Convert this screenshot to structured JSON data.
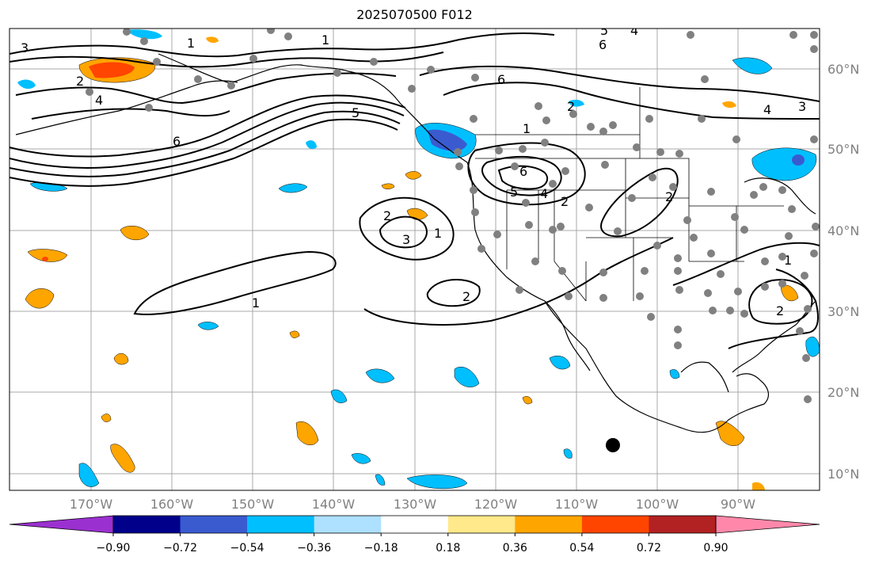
{
  "title": "2025070500 F012",
  "lat_labels": [
    "60°N",
    "50°N",
    "40°N",
    "30°N",
    "20°N",
    "10°N"
  ],
  "lon_labels": [
    "170°W",
    "160°W",
    "150°W",
    "140°W",
    "130°W",
    "120°W",
    "110°W",
    "100°W",
    "90°W"
  ],
  "colorbar": {
    "colors": [
      "#9b30d0",
      "#00008b",
      "#3a5bd0",
      "#00bfff",
      "#aee0ff",
      "#ffffff",
      "#ffe98a",
      "#ffa500",
      "#ff4500",
      "#b22222",
      "#ff88aa"
    ],
    "tick_labels": [
      "−0.90",
      "−0.72",
      "−0.54",
      "−0.36",
      "−0.18",
      "0.18",
      "0.36",
      "0.54",
      "0.72",
      "0.90"
    ]
  },
  "contour_labels": [
    "1",
    "2",
    "3",
    "4",
    "5",
    "6"
  ],
  "map_features": [
    "coastlines",
    "state-borders",
    "country-borders",
    "gridlines",
    "station-markers",
    "storm-marker"
  ]
}
